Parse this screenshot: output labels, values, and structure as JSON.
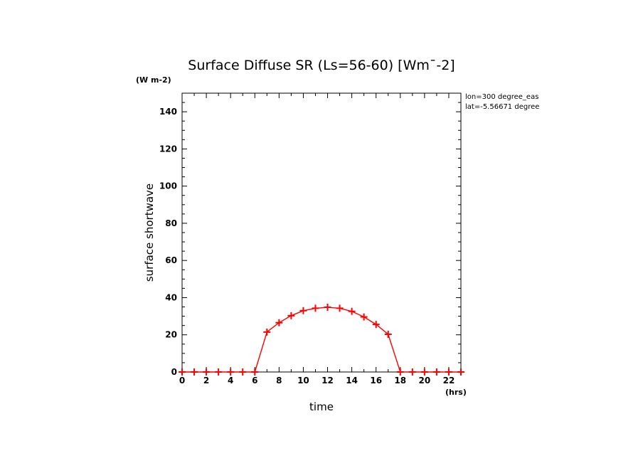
{
  "chart_data": {
    "type": "line",
    "title": "Surface Diffuse SR (Ls=56-60) [Wm¯-2]",
    "ylabel": "surface shortwave",
    "y_units": "(W m-2)",
    "xlabel": "time",
    "x_units": "(hrs)",
    "annotations": [
      "lon=300 degree_eas",
      "lat=-5.56671 degree"
    ],
    "xlim": [
      0,
      23
    ],
    "ylim": [
      0,
      150
    ],
    "x_ticks": [
      0,
      2,
      4,
      6,
      8,
      10,
      12,
      14,
      16,
      18,
      20,
      22
    ],
    "y_ticks": [
      0,
      20,
      40,
      60,
      80,
      100,
      120,
      140
    ],
    "grid": false,
    "series_color": "#ff0000",
    "marker": "plus",
    "series": [
      {
        "x": [
          0,
          1,
          2,
          3,
          4,
          5,
          6,
          7,
          8,
          9,
          10,
          11,
          12,
          13,
          14,
          15,
          16,
          17,
          18,
          19,
          20,
          21,
          22,
          23
        ],
        "values": [
          0,
          0,
          0,
          0,
          0,
          0,
          0,
          21.5,
          26.5,
          30.3,
          33.0,
          34.3,
          34.8,
          34.3,
          32.6,
          29.6,
          25.6,
          20.3,
          0,
          0,
          0,
          0,
          0,
          0
        ]
      }
    ]
  }
}
